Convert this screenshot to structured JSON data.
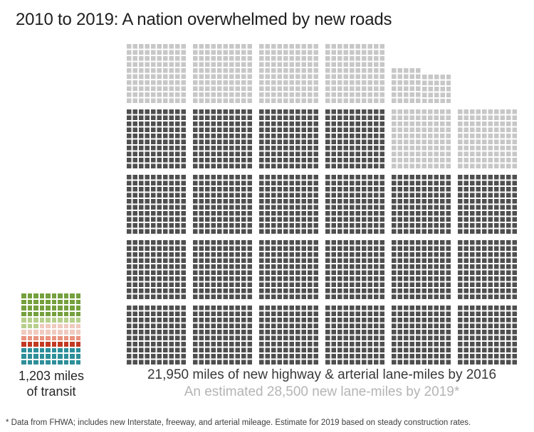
{
  "title": "2010 to 2019: A nation overwhelmed by new roads",
  "footnote": "* Data from FHWA; includes new Interstate, freeway, and arterial mileage. Estimate for 2019 based on steady construction rates.",
  "colors": {
    "background": "#ffffff",
    "road_built": "#4f4f4f",
    "road_projected": "#c7c7c7",
    "label_dark": "#383838",
    "label_gray": "#b4b4b4"
  },
  "chart_data": [
    {
      "type": "waffle",
      "name": "roads",
      "title": "2010 to 2019: A nation overwhelmed by new roads",
      "miles_per_square": 10,
      "squares_per_block": 100,
      "series": [
        {
          "name": "New highway & arterial lane-miles built by 2016",
          "miles": 21950,
          "squares": 2195,
          "color": "#4f4f4f"
        },
        {
          "name": "Additional estimated lane-miles by 2019",
          "miles": 6550,
          "squares": 655,
          "color": "#c7c7c7"
        }
      ],
      "estimated_total_2019_miles": 28500,
      "label_line1": "21,950 miles of new highway & arterial lane-miles by 2016",
      "label_line2": "An estimated 28,500 new lane-miles by 2019*",
      "layout": {
        "block_rows": 5,
        "columns": [
          {
            "light_blocks": 1,
            "dark_blocks": 4
          },
          {
            "light_blocks": 1,
            "dark_blocks": 4
          },
          {
            "light_blocks": 1,
            "dark_blocks": 4
          },
          {
            "light_blocks": 1,
            "dark_blocks": 4
          },
          {
            "top_partial": {
              "left": {
                "cols": 5,
                "rows": 6
              },
              "right": {
                "cols": 5,
                "rows": 5
              }
            },
            "light_blocks": 1,
            "dark_blocks": 3
          },
          {
            "light_blocks": 1,
            "dark_blocks": 3
          }
        ]
      }
    },
    {
      "type": "waffle",
      "name": "transit",
      "miles_per_square": 10,
      "total_miles": 1203,
      "grid_columns": 10,
      "segments": [
        {
          "name": "transit-segment-green",
          "color": "#74a03d",
          "squares": 40
        },
        {
          "name": "transit-segment-light-green",
          "color": "#b7cf8c",
          "squares": 13
        },
        {
          "name": "transit-segment-pale-pink",
          "color": "#f0cabf",
          "squares": 17
        },
        {
          "name": "transit-segment-salmon",
          "color": "#e8937f",
          "squares": 10
        },
        {
          "name": "transit-segment-red",
          "color": "#c23a22",
          "squares": 10
        },
        {
          "name": "transit-segment-teal",
          "color": "#2e8f99",
          "squares": 30
        }
      ],
      "label_line1": "1,203 miles",
      "label_line2": "of transit"
    }
  ]
}
